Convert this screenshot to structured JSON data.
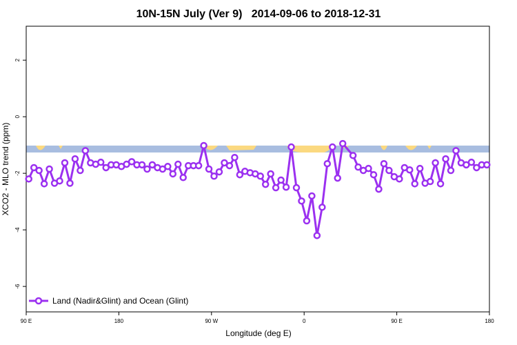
{
  "chart_data": {
    "type": "line",
    "title": "10N-15N July (Ver 9)   2014-09-06 to 2018-12-31",
    "x_label": "Longitude (deg E)",
    "y_label": "XCO2 - MLO trend (ppm)",
    "xlim": [
      90,
      540
    ],
    "ylim": [
      -6.9,
      3.2
    ],
    "xticks": [
      {
        "value": 90,
        "label": "90 E"
      },
      {
        "value": 180,
        "label": "180"
      },
      {
        "value": 270,
        "label": "90 W"
      },
      {
        "value": 360,
        "label": "0"
      },
      {
        "value": 450,
        "label": "90 E"
      },
      {
        "value": 540,
        "label": "180"
      }
    ],
    "yticks": [
      -6,
      -4,
      -2,
      0,
      2
    ],
    "legend": "bottom-left",
    "series": [
      {
        "name": "Land (Nadir&Glint) and Ocean (Glint)",
        "color": "#9b30f0",
        "x": [
          92.5,
          97.5,
          102.5,
          107.5,
          112.5,
          117.5,
          122.5,
          127.5,
          132.5,
          137.5,
          142.5,
          147.5,
          152.5,
          157.5,
          162.5,
          167.5,
          172.5,
          177.5,
          182.5,
          187.5,
          192.5,
          197.5,
          202.5,
          207.5,
          212.5,
          217.5,
          222.5,
          227.5,
          232.5,
          237.5,
          242.5,
          247.5,
          252.5,
          257.5,
          262.5,
          267.5,
          272.5,
          277.5,
          282.5,
          287.5,
          292.5,
          297.5,
          302.5,
          307.5,
          312.5,
          317.5,
          322.5,
          327.5,
          332.5,
          337.5,
          342.5,
          347.5,
          352.5,
          357.5,
          362.5,
          367.5,
          372.5,
          377.5,
          382.5,
          387.5,
          392.5,
          397.5,
          407.5,
          412.5,
          417.5,
          422.5,
          427.5,
          432.5,
          437.5,
          442.5,
          447.5,
          452.5,
          457.5,
          462.5,
          467.5,
          472.5,
          477.5,
          482.5,
          487.5,
          492.5,
          497.5,
          502.5,
          507.5,
          512.5,
          517.5,
          522.5,
          527.5,
          532.5,
          537.5
        ],
        "values": [
          -2.2,
          -1.8,
          -1.9,
          -2.37,
          -1.85,
          -2.35,
          -2.27,
          -1.63,
          -2.35,
          -1.49,
          -1.9,
          -1.2,
          -1.63,
          -1.68,
          -1.61,
          -1.8,
          -1.7,
          -1.7,
          -1.76,
          -1.68,
          -1.59,
          -1.7,
          -1.7,
          -1.85,
          -1.7,
          -1.8,
          -1.85,
          -1.76,
          -2.02,
          -1.68,
          -2.15,
          -1.73,
          -1.73,
          -1.73,
          -1.02,
          -1.85,
          -2.1,
          -1.95,
          -1.63,
          -1.73,
          -1.44,
          -2.05,
          -1.93,
          -1.98,
          -2.02,
          -2.1,
          -2.39,
          -2.02,
          -2.51,
          -2.24,
          -2.49,
          -1.07,
          -2.51,
          -2.98,
          -3.68,
          -2.8,
          -4.2,
          -3.2,
          -1.66,
          -1.07,
          -2.17,
          -0.95,
          -1.37,
          -1.78,
          -1.9,
          -1.83,
          -2.05,
          -2.56,
          -1.66,
          -1.9,
          -2.12,
          -2.2,
          -1.8,
          -1.88,
          -2.37,
          -1.83,
          -2.35,
          -2.29,
          -1.63,
          -2.37,
          -1.49,
          -1.9,
          -1.2,
          -1.63,
          -1.7,
          -1.61,
          -1.8,
          -1.7,
          -1.7
        ]
      }
    ]
  }
}
